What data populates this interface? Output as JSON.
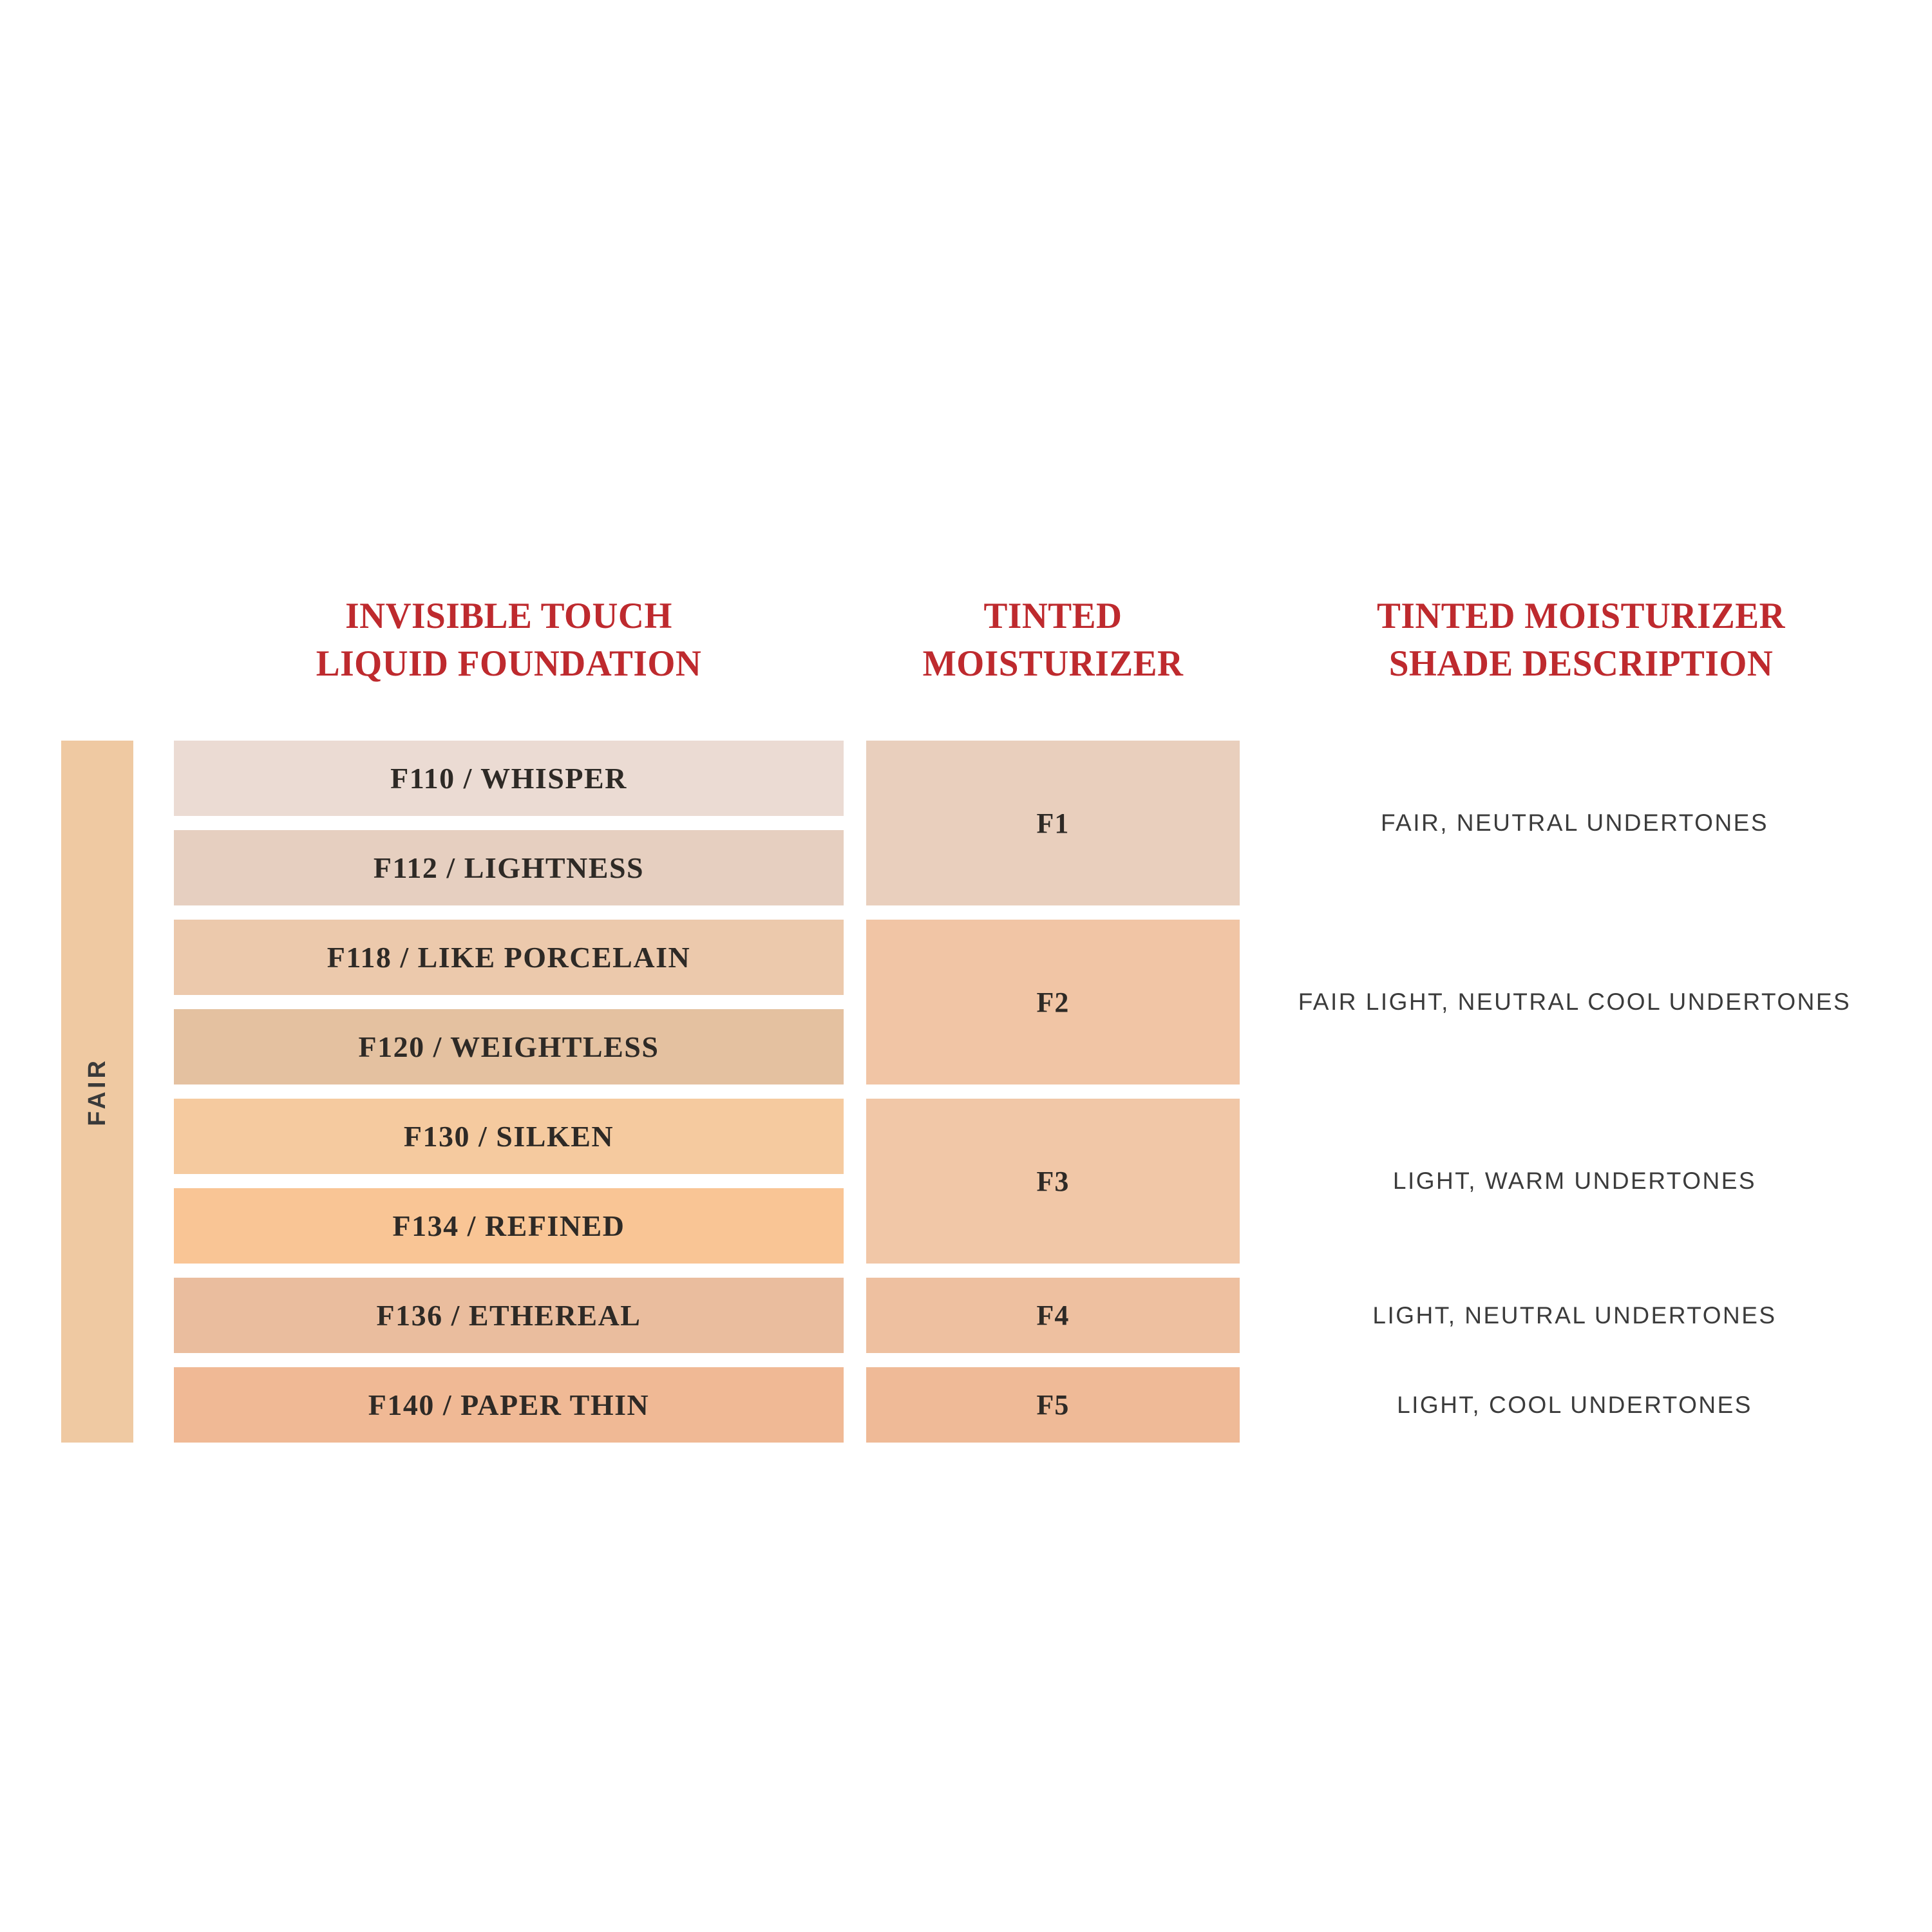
{
  "accent_red": "#be2a2e",
  "text_dark": "#2e2a26",
  "text_gray": "#3b3b3b",
  "titles": {
    "foundation": {
      "line1": "INVISIBLE TOUCH",
      "line2": "LIQUID FOUNDATION"
    },
    "tinted": {
      "line1": "TINTED",
      "line2": "MOISTURIZER"
    },
    "description": {
      "line1": "TINTED MOISTURIZER",
      "line2": "SHADE DESCRIPTION"
    }
  },
  "category": {
    "label": "FAIR",
    "color": "#efc9a2"
  },
  "chart_data": {
    "type": "table",
    "title": "Invisible Touch Liquid Foundation to Tinted Moisturizer shade match — FAIR range",
    "columns": [
      "INVISIBLE TOUCH LIQUID FOUNDATION",
      "TINTED MOISTURIZER",
      "TINTED MOISTURIZER SHADE DESCRIPTION"
    ],
    "category": "FAIR",
    "foundation_shades": [
      {
        "code": "F110",
        "name": "WHISPER",
        "label": "F110 / WHISPER",
        "color": "#ebdbd3",
        "tinted_match": "F1"
      },
      {
        "code": "F112",
        "name": "LIGHTNESS",
        "label": "F112 / LIGHTNESS",
        "color": "#e6cfc0",
        "tinted_match": "F1"
      },
      {
        "code": "F118",
        "name": "LIKE PORCELAIN",
        "label": "F118 / LIKE PORCELAIN",
        "color": "#ecc9ac",
        "tinted_match": "F2"
      },
      {
        "code": "F120",
        "name": "WEIGHTLESS",
        "label": "F120 / WEIGHTLESS",
        "color": "#e4c1a0",
        "tinted_match": "F2"
      },
      {
        "code": "F130",
        "name": "SILKEN",
        "label": "F130 / SILKEN",
        "color": "#f5ca9f",
        "tinted_match": "F3"
      },
      {
        "code": "F134",
        "name": "REFINED",
        "label": "F134 / REFINED",
        "color": "#f9c595",
        "tinted_match": "F3"
      },
      {
        "code": "F136",
        "name": "ETHEREAL",
        "label": "F136 / ETHEREAL",
        "color": "#eabd9e",
        "tinted_match": "F4"
      },
      {
        "code": "F140",
        "name": "PAPER THIN",
        "label": "F140 / PAPER THIN",
        "color": "#f0b995",
        "tinted_match": "F5"
      }
    ],
    "tinted_moisturizer_shades": [
      {
        "label": "F1",
        "color": "#e9cfbd",
        "description": "FAIR, NEUTRAL UNDERTONES",
        "foundation_span": [
          "F110",
          "F112"
        ]
      },
      {
        "label": "F2",
        "color": "#f1c5a5",
        "description": "FAIR LIGHT, NEUTRAL COOL UNDERTONES",
        "foundation_span": [
          "F118",
          "F120"
        ]
      },
      {
        "label": "F3",
        "color": "#f1c7a7",
        "description": "LIGHT, WARM UNDERTONES",
        "foundation_span": [
          "F130",
          "F134"
        ]
      },
      {
        "label": "F4",
        "color": "#eec0a0",
        "description": "LIGHT, NEUTRAL UNDERTONES",
        "foundation_span": [
          "F136"
        ]
      },
      {
        "label": "F5",
        "color": "#efba97",
        "description": "LIGHT, COOL UNDERTONES",
        "foundation_span": [
          "F140"
        ]
      }
    ]
  }
}
